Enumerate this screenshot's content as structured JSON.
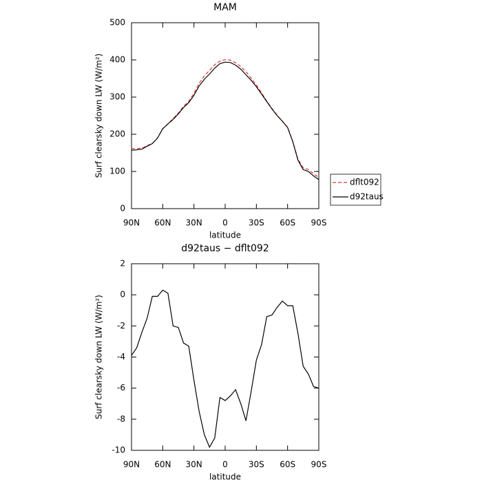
{
  "chart_data": [
    {
      "type": "line",
      "title": "MAM",
      "xlabel": "latitude",
      "ylabel": "Surf clearsky down LW (W/m²)",
      "x": [
        90,
        85,
        80,
        75,
        70,
        65,
        60,
        55,
        50,
        45,
        40,
        35,
        30,
        25,
        20,
        15,
        10,
        5,
        0,
        -5,
        -10,
        -15,
        -20,
        -25,
        -30,
        -35,
        -40,
        -45,
        -50,
        -55,
        -60,
        -65,
        -70,
        -75,
        -80,
        -85,
        -90
      ],
      "xlim": [
        90,
        -90
      ],
      "xticks": [
        {
          "value": 90,
          "label": "90N"
        },
        {
          "value": 60,
          "label": "60N"
        },
        {
          "value": 30,
          "label": "30N"
        },
        0,
        {
          "value": -30,
          "label": "30S"
        },
        {
          "value": -60,
          "label": "60S"
        },
        {
          "value": -90,
          "label": "90S"
        }
      ],
      "ylim": [
        0,
        500
      ],
      "yticks": [
        0,
        100,
        200,
        300,
        400,
        500
      ],
      "legend": "right",
      "series": [
        {
          "name": "dflt092",
          "color": "#e0302a",
          "dash": true,
          "values": [
            160.9,
            161.4,
            162.4,
            169.5,
            175.1,
            190.1,
            214.7,
            227.9,
            242,
            257.1,
            275.1,
            288.3,
            310.5,
            337.5,
            357,
            371.8,
            387.2,
            396.6,
            400.8,
            399.5,
            392.1,
            382,
            368.1,
            351.2,
            332.2,
            311.2,
            289.4,
            269.3,
            250.8,
            235.4,
            218.7,
            180.7,
            132.5,
            109.6,
            105.1,
            93.9,
            84
          ]
        },
        {
          "name": "d92taus",
          "color": "#000000",
          "dash": false,
          "values": [
            157,
            158,
            160,
            168,
            175,
            190,
            215,
            228,
            240,
            255,
            272,
            285,
            305,
            330,
            348,
            362,
            378,
            390,
            394,
            393,
            386,
            375,
            360,
            345,
            328,
            308,
            288,
            268,
            250,
            235,
            218,
            180,
            130,
            105,
            100,
            88,
            78
          ]
        }
      ]
    },
    {
      "type": "line",
      "title": "d92taus − dflt092",
      "xlabel": "latitude",
      "ylabel": "Surf clearsky down LW (W/m²)",
      "x": [
        90,
        85,
        80,
        75,
        70,
        65,
        60,
        55,
        50,
        45,
        40,
        35,
        30,
        25,
        20,
        15,
        10,
        5,
        0,
        -5,
        -10,
        -15,
        -20,
        -25,
        -30,
        -35,
        -40,
        -45,
        -50,
        -55,
        -60,
        -65,
        -70,
        -75,
        -80,
        -85,
        -90
      ],
      "xlim": [
        90,
        -90
      ],
      "xticks": [
        {
          "value": 90,
          "label": "90N"
        },
        {
          "value": 60,
          "label": "60N"
        },
        {
          "value": 30,
          "label": "30N"
        },
        0,
        {
          "value": -30,
          "label": "30S"
        },
        {
          "value": -60,
          "label": "60S"
        },
        {
          "value": -90,
          "label": "90S"
        }
      ],
      "ylim": [
        -10,
        2
      ],
      "yticks": [
        -10,
        -8,
        -6,
        -4,
        -2,
        0,
        2
      ],
      "series": [
        {
          "color": "#000000",
          "values": [
            -3.9,
            -3.4,
            -2.4,
            -1.5,
            -0.1,
            -0.1,
            0.3,
            0.1,
            -2.0,
            -2.1,
            -3.1,
            -3.3,
            -5.5,
            -7.5,
            -9.0,
            -9.8,
            -9.2,
            -6.6,
            -6.8,
            -6.5,
            -6.1,
            -7.0,
            -8.1,
            -6.2,
            -4.2,
            -3.2,
            -1.4,
            -1.3,
            -0.8,
            -0.4,
            -0.7,
            -0.7,
            -2.5,
            -4.6,
            -5.1,
            -5.9,
            -6.0
          ]
        }
      ]
    }
  ]
}
